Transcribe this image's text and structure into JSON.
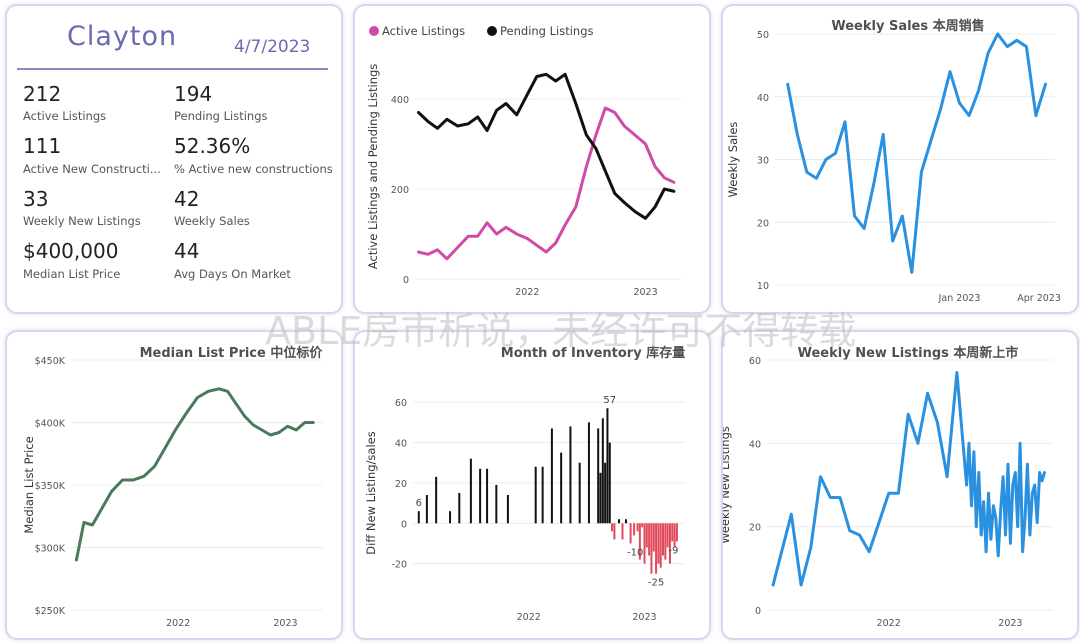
{
  "summary": {
    "city": "Clayton",
    "date": "4/7/2023",
    "stats": [
      {
        "value": "212",
        "label": "Active Listings"
      },
      {
        "value": "194",
        "label": "Pending Listings"
      },
      {
        "value": "111",
        "label": "Active New Constructi..."
      },
      {
        "value": "52.36%",
        "label": "% Active new constructions"
      },
      {
        "value": "33",
        "label": "Weekly New Listings"
      },
      {
        "value": "42",
        "label": "Weekly Sales"
      },
      {
        "value": "$400,000",
        "label": "Median List Price"
      },
      {
        "value": "44",
        "label": "Avg Days On Market"
      }
    ]
  },
  "watermark": "ABLE房市析说，未经许可不得转载",
  "chart_data": [
    {
      "id": "active-pending",
      "type": "line",
      "title": "",
      "ylabel": "Active Listings and Pending Listings",
      "xlim": [
        2021.05,
        2023.3
      ],
      "ylim": [
        0,
        500
      ],
      "yticks": [
        0,
        200,
        400
      ],
      "xticks": [
        {
          "x": 2022.0,
          "label": "2022"
        },
        {
          "x": 2023.0,
          "label": "2023"
        }
      ],
      "legend_position": "top-left",
      "series": [
        {
          "name": "Active Listings",
          "color": "#d14aa8",
          "x": [
            2021.08,
            2021.16,
            2021.24,
            2021.32,
            2021.41,
            2021.5,
            2021.58,
            2021.66,
            2021.74,
            2021.82,
            2021.91,
            2022.0,
            2022.08,
            2022.16,
            2022.24,
            2022.32,
            2022.41,
            2022.5,
            2022.58,
            2022.66,
            2022.74,
            2022.82,
            2022.91,
            2023.0,
            2023.08,
            2023.16,
            2023.24
          ],
          "y": [
            60,
            55,
            65,
            45,
            70,
            95,
            95,
            125,
            100,
            115,
            100,
            90,
            75,
            60,
            80,
            120,
            160,
            250,
            320,
            380,
            370,
            340,
            320,
            300,
            250,
            225,
            215
          ]
        },
        {
          "name": "Pending Listings",
          "color": "#111111",
          "x": [
            2021.08,
            2021.16,
            2021.24,
            2021.32,
            2021.41,
            2021.5,
            2021.58,
            2021.66,
            2021.74,
            2021.82,
            2021.91,
            2022.0,
            2022.08,
            2022.16,
            2022.24,
            2022.32,
            2022.41,
            2022.5,
            2022.58,
            2022.66,
            2022.74,
            2022.82,
            2022.91,
            2023.0,
            2023.08,
            2023.16,
            2023.24
          ],
          "y": [
            370,
            350,
            335,
            355,
            340,
            345,
            360,
            330,
            375,
            390,
            365,
            410,
            450,
            455,
            440,
            455,
            390,
            320,
            290,
            240,
            190,
            170,
            150,
            135,
            160,
            200,
            195
          ]
        }
      ]
    },
    {
      "id": "weekly-sales",
      "type": "line",
      "title": "Weekly Sales 本周销售",
      "ylabel": "Weekly Sales",
      "xlim": [
        2022.42,
        2023.3
      ],
      "ylim": [
        10,
        50
      ],
      "yticks": [
        10,
        20,
        30,
        40,
        50
      ],
      "xticks": [
        {
          "x": 2023.0,
          "label": "Jan 2023"
        },
        {
          "x": 2023.25,
          "label": "Apr 2023"
        }
      ],
      "series": [
        {
          "name": "",
          "color": "#2a90e0",
          "x": [
            2022.46,
            2022.49,
            2022.52,
            2022.55,
            2022.58,
            2022.61,
            2022.64,
            2022.67,
            2022.7,
            2022.73,
            2022.76,
            2022.79,
            2022.82,
            2022.85,
            2022.88,
            2022.91,
            2022.94,
            2022.97,
            2023.0,
            2023.03,
            2023.06,
            2023.09,
            2023.12,
            2023.15,
            2023.18,
            2023.21,
            2023.24,
            2023.27
          ],
          "y": [
            42,
            34,
            28,
            27,
            30,
            31,
            36,
            21,
            19,
            26,
            34,
            17,
            21,
            12,
            28,
            33,
            38,
            44,
            39,
            37,
            41,
            47,
            50,
            48,
            49,
            48,
            37,
            42
          ]
        }
      ]
    },
    {
      "id": "median-list-price",
      "type": "line",
      "title": "Median List Price 中位标价",
      "ylabel": "Median List Price",
      "xlim": [
        2021.0,
        2023.35
      ],
      "ylim": [
        250000,
        450000
      ],
      "yticks": [
        {
          "v": 250000,
          "label": "$250K"
        },
        {
          "v": 300000,
          "label": "$300K"
        },
        {
          "v": 350000,
          "label": "$350K"
        },
        {
          "v": 400000,
          "label": "$400K"
        },
        {
          "v": 450000,
          "label": "$450K"
        }
      ],
      "xticks": [
        {
          "x": 2022.0,
          "label": "2022"
        },
        {
          "x": 2023.0,
          "label": "2023"
        }
      ],
      "series": [
        {
          "name": "",
          "color": "#4a7a5a",
          "x": [
            2021.05,
            2021.12,
            2021.2,
            2021.28,
            2021.38,
            2021.48,
            2021.58,
            2021.68,
            2021.78,
            2021.88,
            2021.98,
            2022.08,
            2022.18,
            2022.28,
            2022.38,
            2022.46,
            2022.54,
            2022.62,
            2022.7,
            2022.78,
            2022.86,
            2022.94,
            2023.02,
            2023.1,
            2023.18,
            2023.26
          ],
          "y": [
            290000,
            320000,
            318000,
            330000,
            345000,
            354000,
            354000,
            357000,
            365000,
            380000,
            395000,
            408000,
            420000,
            425000,
            427000,
            425000,
            415000,
            405000,
            398000,
            394000,
            390000,
            392000,
            397000,
            394000,
            400000,
            400000
          ]
        }
      ]
    },
    {
      "id": "month-of-inventory",
      "type": "bar",
      "title": "Month of Inventory 库存量",
      "ylabel": "Diff New Listing/sales",
      "xlim": [
        2021.0,
        2023.35
      ],
      "ylim": [
        -40,
        70
      ],
      "yticks": [
        -20,
        0,
        20,
        40,
        60
      ],
      "xticks": [
        {
          "x": 2022.0,
          "label": "2022"
        },
        {
          "x": 2023.0,
          "label": "2023"
        }
      ],
      "positive_color": "#111111",
      "negative_color": "#e14a5c",
      "data_labels": [
        {
          "x": 2021.05,
          "v": 6
        },
        {
          "x": 2022.7,
          "v": 57
        },
        {
          "x": 2022.92,
          "v": -10
        },
        {
          "x": 2023.1,
          "v": -25
        },
        {
          "x": 2023.25,
          "v": -9
        }
      ],
      "x": [
        2021.05,
        2021.12,
        2021.2,
        2021.32,
        2021.4,
        2021.5,
        2021.58,
        2021.64,
        2021.72,
        2021.82,
        2022.06,
        2022.12,
        2022.2,
        2022.28,
        2022.36,
        2022.44,
        2022.52,
        2022.6,
        2022.62,
        2022.64,
        2022.66,
        2022.68,
        2022.7,
        2022.72,
        2022.74,
        2022.78,
        2022.81,
        2022.84,
        2022.88,
        2022.91,
        2022.94,
        2022.96,
        2022.98,
        2023.0,
        2023.02,
        2023.04,
        2023.06,
        2023.08,
        2023.1,
        2023.12,
        2023.14,
        2023.16,
        2023.18,
        2023.2,
        2023.22,
        2023.24,
        2023.26,
        2023.28
      ],
      "values": [
        6,
        14,
        23,
        6,
        15,
        32,
        27,
        27,
        19,
        14,
        28,
        28,
        47,
        35,
        48,
        30,
        50,
        47,
        25,
        52,
        30,
        57,
        40,
        -4,
        -8,
        2,
        -8,
        2,
        -10,
        -6,
        -4,
        -18,
        -2,
        -20,
        -12,
        -16,
        -25,
        -14,
        -25,
        -20,
        -22,
        -16,
        -18,
        -12,
        -20,
        -9,
        -12,
        -9
      ]
    },
    {
      "id": "weekly-new-listings",
      "type": "line",
      "title": "Weekly New Listings 本周新上市",
      "ylabel": "Weekly New Listings",
      "xlim": [
        2021.0,
        2023.35
      ],
      "ylim": [
        0,
        60
      ],
      "yticks": [
        0,
        20,
        40,
        60
      ],
      "xticks": [
        {
          "x": 2022.0,
          "label": "2022"
        },
        {
          "x": 2023.0,
          "label": "2023"
        }
      ],
      "series": [
        {
          "name": "",
          "color": "#2a90e0",
          "x": [
            2021.05,
            2021.12,
            2021.2,
            2021.28,
            2021.36,
            2021.44,
            2021.52,
            2021.6,
            2021.68,
            2021.76,
            2021.84,
            2021.92,
            2022.0,
            2022.08,
            2022.16,
            2022.24,
            2022.32,
            2022.4,
            2022.48,
            2022.56,
            2022.64,
            2022.66,
            2022.68,
            2022.7,
            2022.72,
            2022.74,
            2022.76,
            2022.78,
            2022.8,
            2022.82,
            2022.84,
            2022.86,
            2022.88,
            2022.9,
            2022.92,
            2022.94,
            2022.96,
            2022.98,
            2023.0,
            2023.02,
            2023.04,
            2023.06,
            2023.08,
            2023.1,
            2023.12,
            2023.14,
            2023.16,
            2023.18,
            2023.2,
            2023.22,
            2023.24,
            2023.26,
            2023.28
          ],
          "y": [
            6,
            14,
            23,
            6,
            15,
            32,
            27,
            27,
            19,
            18,
            14,
            21,
            28,
            28,
            47,
            40,
            52,
            45,
            32,
            57,
            30,
            40,
            25,
            38,
            20,
            33,
            18,
            26,
            14,
            28,
            17,
            25,
            22,
            13,
            24,
            32,
            18,
            35,
            16,
            30,
            33,
            20,
            40,
            14,
            22,
            35,
            18,
            28,
            30,
            21,
            33,
            31,
            33
          ]
        }
      ]
    }
  ]
}
